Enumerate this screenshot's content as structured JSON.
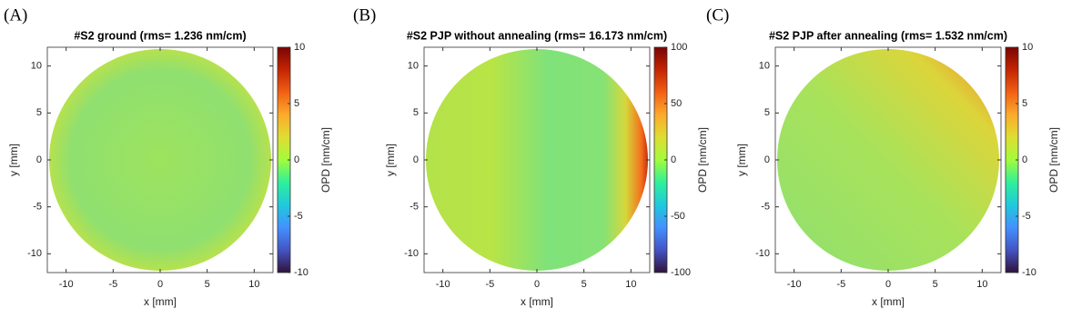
{
  "chart_data": [
    {
      "type": "heatmap",
      "panel_label": "(A)",
      "title": "#S2 ground (rms= 1.236 nm/cm)",
      "xlabel": "x [mm]",
      "ylabel": "y [mm]",
      "colorbar_label": "OPD [nm/cm]",
      "xlim": [
        -12,
        12
      ],
      "ylim": [
        -12,
        12
      ],
      "xticks": [
        -10,
        -5,
        0,
        5,
        10
      ],
      "yticks": [
        -10,
        -5,
        0,
        5,
        10
      ],
      "clim": [
        -10,
        10
      ],
      "cticks": [
        -10,
        -5,
        0,
        5,
        10
      ],
      "colormap": "turbo"
    },
    {
      "type": "heatmap",
      "panel_label": "(B)",
      "title": "#S2 PJP without annealing (rms= 16.173 nm/cm)",
      "xlabel": "x [mm]",
      "ylabel": "y [mm]",
      "colorbar_label": "OPD [nm/cm]",
      "xlim": [
        -12,
        12
      ],
      "ylim": [
        -12,
        12
      ],
      "xticks": [
        -10,
        -5,
        0,
        5,
        10
      ],
      "yticks": [
        -10,
        -5,
        0,
        5,
        10
      ],
      "clim": [
        -100,
        100
      ],
      "cticks": [
        -100,
        -50,
        0,
        50,
        100
      ],
      "colormap": "turbo"
    },
    {
      "type": "heatmap",
      "panel_label": "(C)",
      "title": "#S2 PJP after annealing (rms= 1.532 nm/cm)",
      "xlabel": "x [mm]",
      "ylabel": "y [mm]",
      "colorbar_label": "OPD [nm/cm]",
      "xlim": [
        -12,
        12
      ],
      "ylim": [
        -12,
        12
      ],
      "xticks": [
        -10,
        -5,
        0,
        5,
        10
      ],
      "yticks": [
        -10,
        -5,
        0,
        5,
        10
      ],
      "clim": [
        -10,
        10
      ],
      "cticks": [
        -10,
        -5,
        0,
        5,
        10
      ],
      "colormap": "turbo"
    }
  ]
}
